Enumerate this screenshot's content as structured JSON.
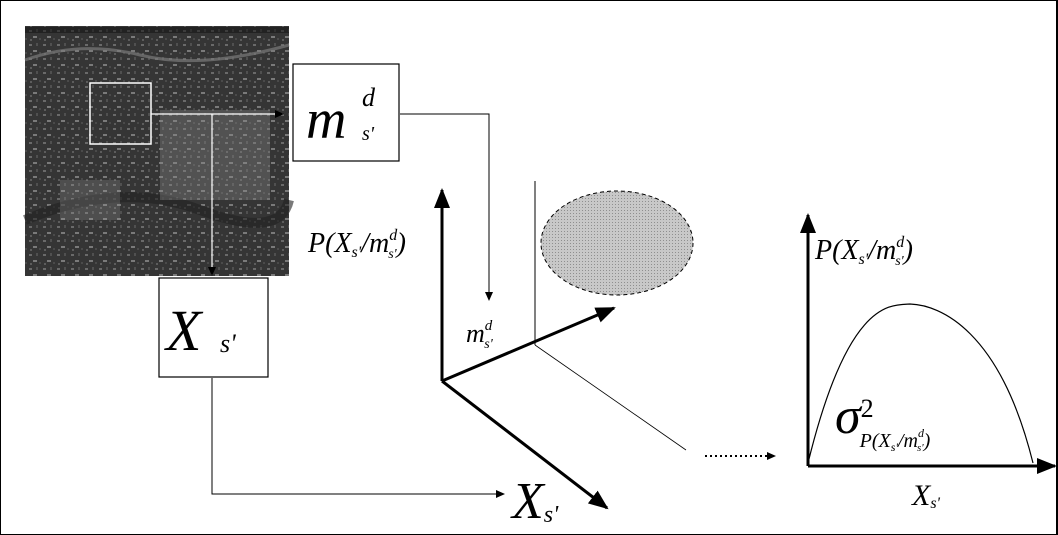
{
  "diagram": {
    "box_m_main": "m",
    "box_m_sup": "d",
    "box_m_sub": "s'",
    "box_x_main": "X",
    "box_x_sub": "s'",
    "axis3d_label": {
      "p": "P(",
      "x": "X",
      "xsub": "s'",
      "slash": "/",
      "m": "m",
      "msup": "d",
      "msub": "s'",
      "close": ")"
    },
    "axis3d_m_label": {
      "main": "m",
      "sup": "d",
      "sub": "s'"
    },
    "axis3d_x_label": {
      "main": "X",
      "sub": "s'"
    },
    "plot_y_label": {
      "p": "P(",
      "x": "X",
      "xsub": "s'",
      "slash": "/",
      "m": "m",
      "msup": "d",
      "msub": "s'",
      "close": ")"
    },
    "plot_x_label": {
      "main": "X",
      "sub": "s'"
    },
    "sigma_label": {
      "sigma": "σ",
      "sup": "2",
      "sub_p": "P(X",
      "sub_xsub": "s'",
      "sub_slash": "/m",
      "sub_msup": "d",
      "sub_msub": "s'",
      "sub_close": ")"
    },
    "colors": {
      "line": "#000000",
      "ellipse_fill": "#cfcfcf",
      "satellite_dark": "#2a2a2a",
      "satellite_light": "#8a8a8a"
    }
  }
}
